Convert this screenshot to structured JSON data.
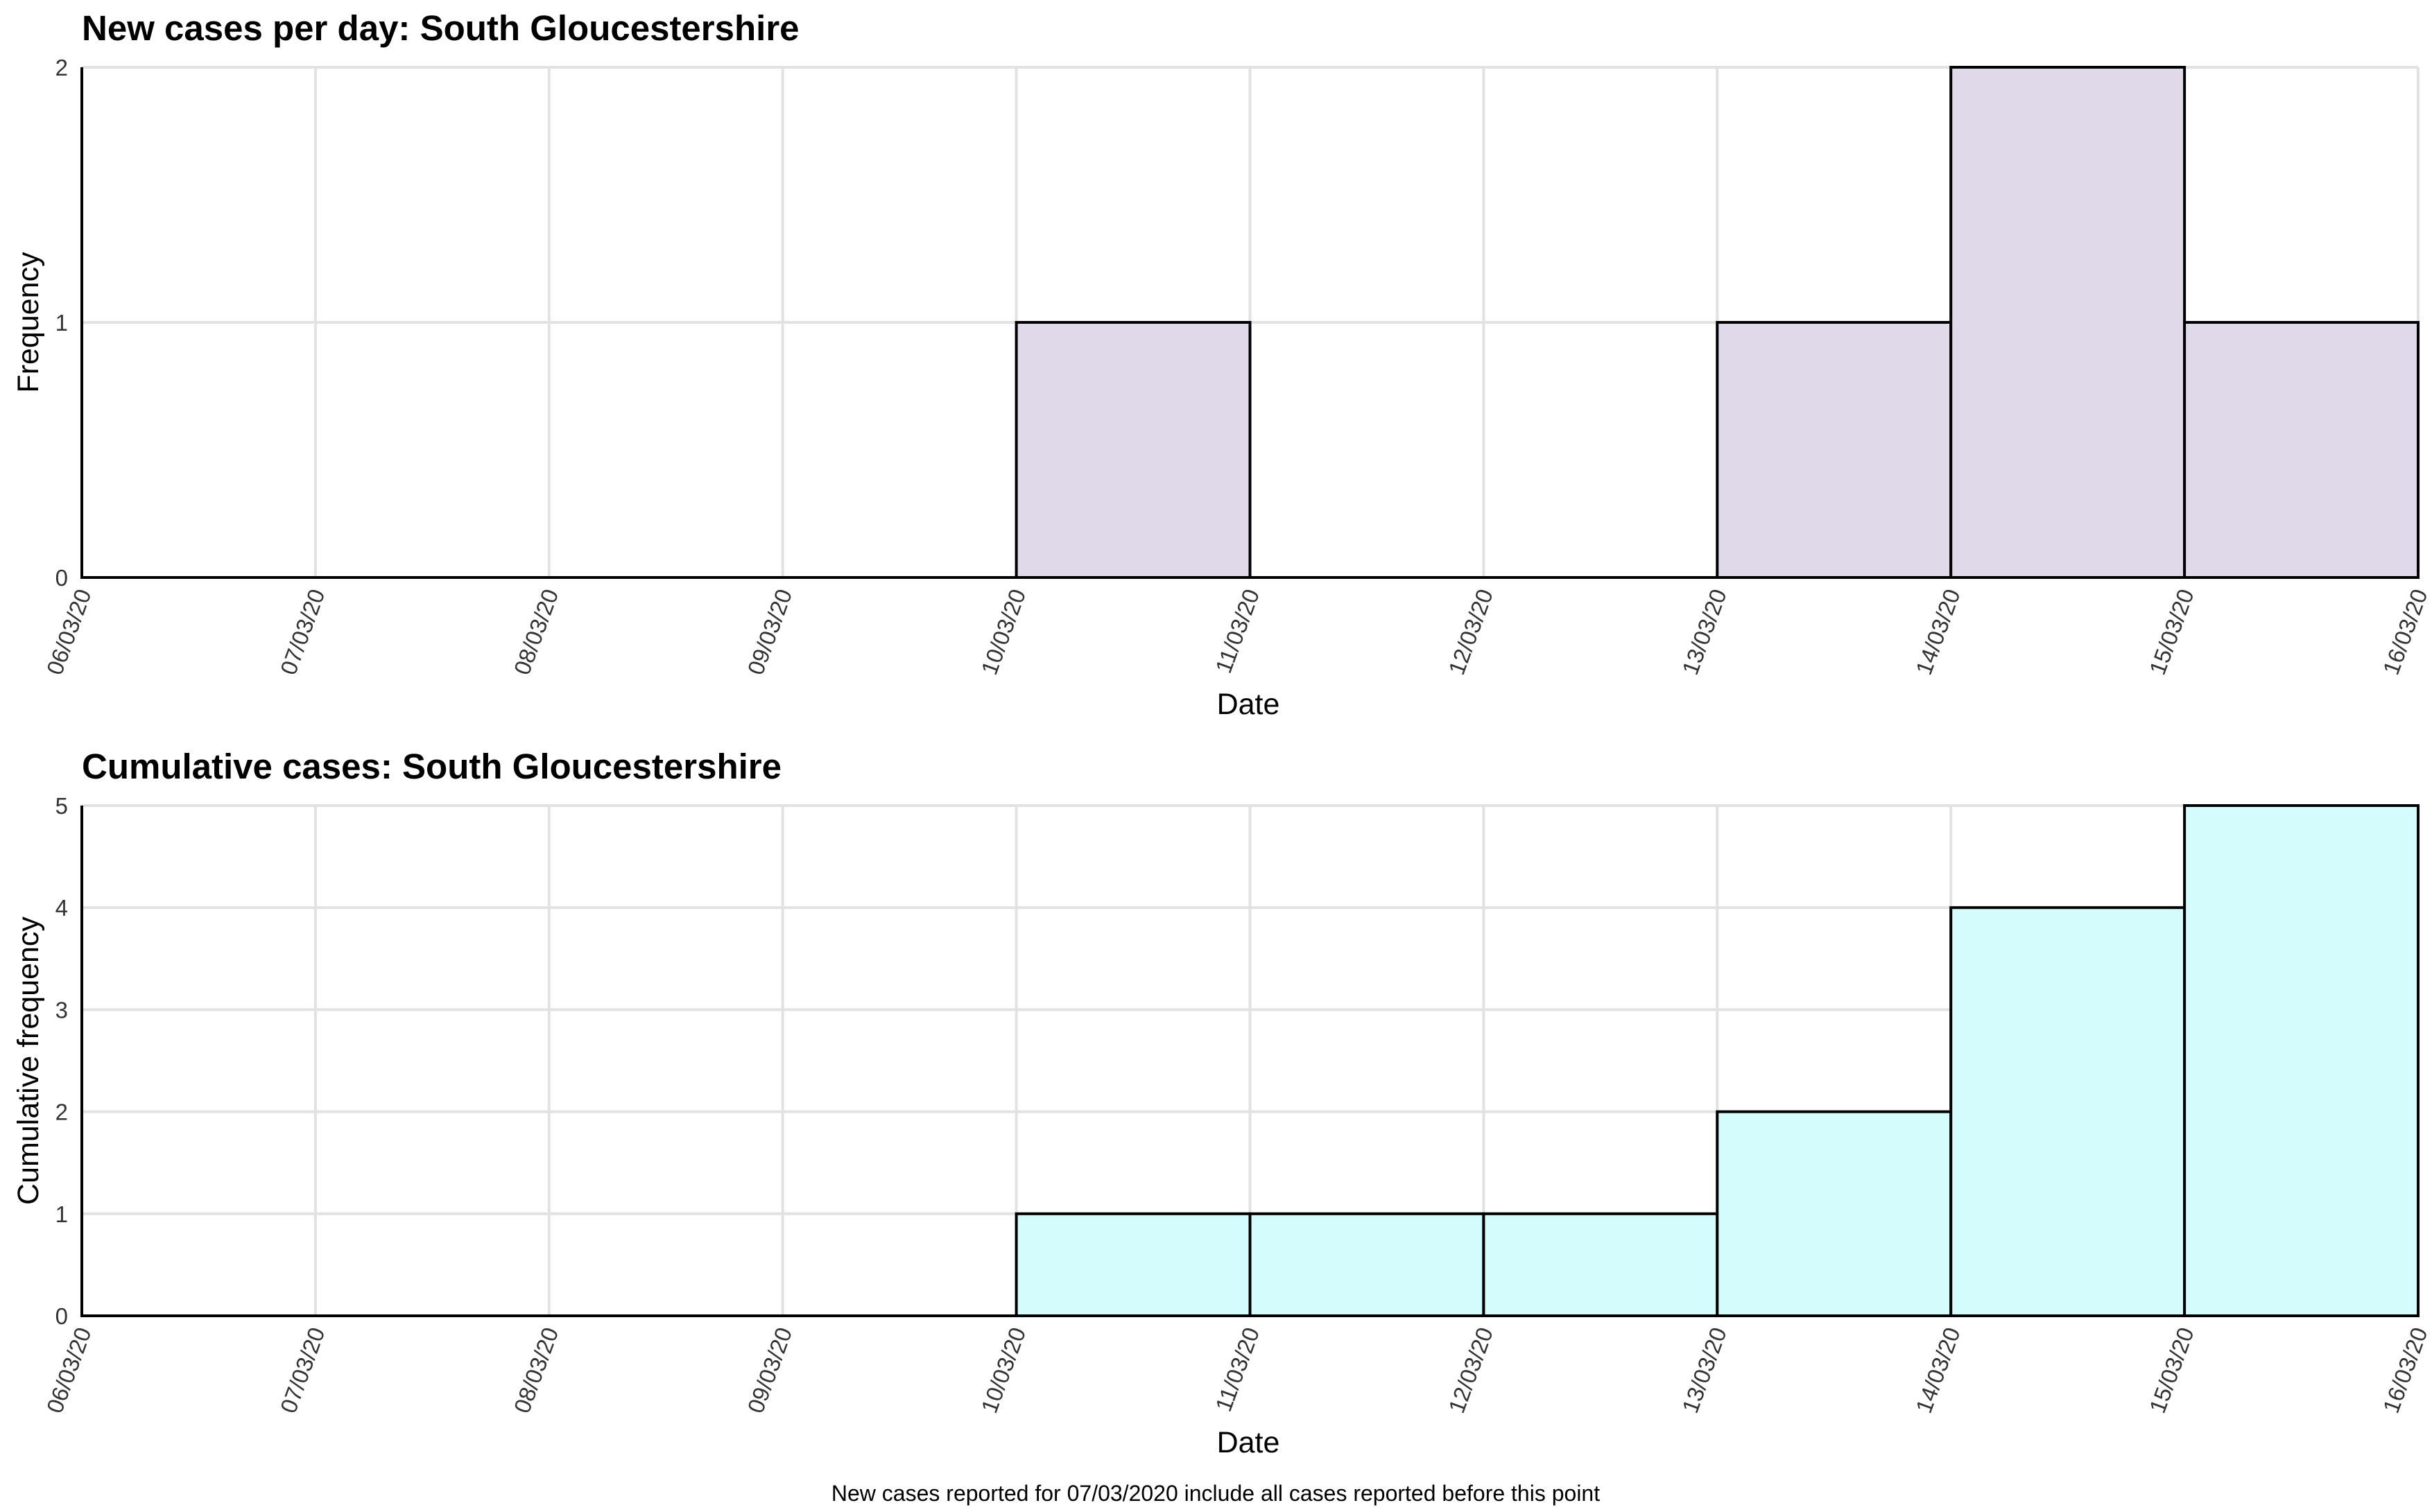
{
  "chart_data": [
    {
      "type": "bar",
      "title": "New cases per day: South Gloucestershire",
      "xlabel": "Date",
      "ylabel": "Frequency",
      "ylim": [
        0,
        2
      ],
      "yticks": [
        "0",
        "1",
        "2"
      ],
      "x_ticks": [
        "06/03/20",
        "07/03/20",
        "08/03/20",
        "09/03/20",
        "10/03/20",
        "11/03/20",
        "12/03/20",
        "13/03/20",
        "14/03/20",
        "15/03/20",
        "16/03/20"
      ],
      "categories": [
        "06/03/20",
        "07/03/20",
        "08/03/20",
        "09/03/20",
        "10/03/20",
        "11/03/20",
        "12/03/20",
        "13/03/20",
        "14/03/20",
        "15/03/20"
      ],
      "values": [
        0,
        0,
        0,
        0,
        1,
        0,
        0,
        1,
        2,
        1
      ],
      "bar_color": "#e0d9ea",
      "grid": true,
      "legend": "none"
    },
    {
      "type": "bar",
      "title": "Cumulative cases: South Gloucestershire",
      "xlabel": "Date",
      "ylabel": "Cumulative frequency",
      "ylim": [
        0,
        5
      ],
      "yticks": [
        "0",
        "1",
        "2",
        "3",
        "4",
        "5"
      ],
      "x_ticks": [
        "06/03/20",
        "07/03/20",
        "08/03/20",
        "09/03/20",
        "10/03/20",
        "11/03/20",
        "12/03/20",
        "13/03/20",
        "14/03/20",
        "15/03/20",
        "16/03/20"
      ],
      "categories": [
        "06/03/20",
        "07/03/20",
        "08/03/20",
        "09/03/20",
        "10/03/20",
        "11/03/20",
        "12/03/20",
        "13/03/20",
        "14/03/20",
        "15/03/20"
      ],
      "values": [
        0,
        0,
        0,
        0,
        1,
        1,
        1,
        2,
        4,
        5
      ],
      "bar_color": "#d5fcfd",
      "grid": true,
      "legend": "none"
    }
  ],
  "caption": "New cases reported for 07/03/2020 include all cases reported before this point"
}
